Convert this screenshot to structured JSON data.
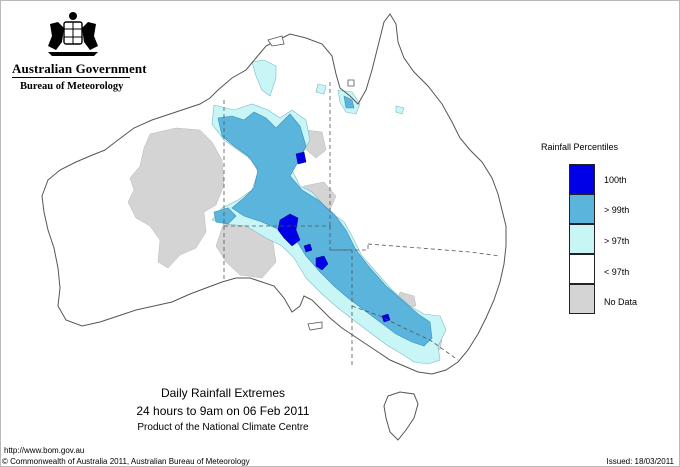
{
  "header": {
    "government": "Australian Government",
    "bureau": "Bureau of Meteorology"
  },
  "legend": {
    "title": "Rainfall Percentiles",
    "items": [
      {
        "label": "100th",
        "color": "#0000e6"
      },
      {
        "label": "> 99th",
        "color": "#5ab4dc"
      },
      {
        "label": "> 97th",
        "color": "#c8f5f5"
      },
      {
        "label": "< 97th",
        "color": "#ffffff"
      },
      {
        "label": "No Data",
        "color": "#d4d4d4"
      }
    ]
  },
  "caption": {
    "title": "Daily Rainfall Extremes",
    "period": "24 hours to 9am on 06 Feb 2011",
    "product": "Product of the National Climate Centre"
  },
  "footer": {
    "url": "http://www.bom.gov.au",
    "copyright": "© Commonwealth of Australia 2011, Australian Bureau of Meteorology",
    "issued": "Issued: 18/03/2011"
  }
}
